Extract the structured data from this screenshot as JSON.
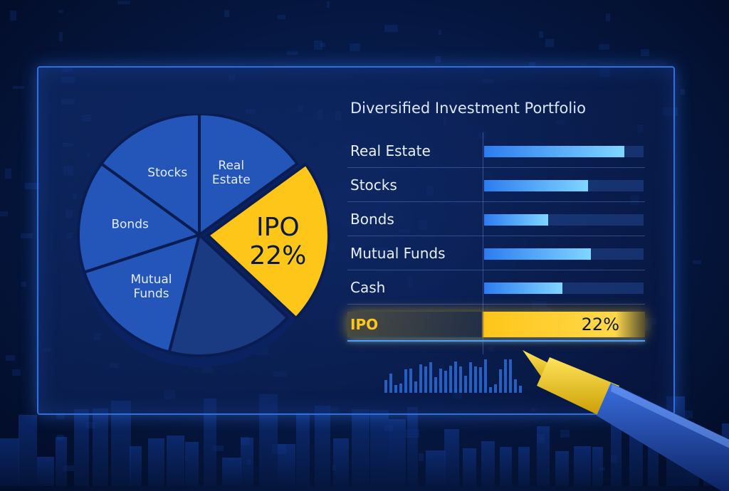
{
  "chart_data": [
    {
      "type": "pie",
      "slices": [
        {
          "label": "Real Estate",
          "value": 15
        },
        {
          "label": "IPO",
          "value": 22,
          "value_label": "22%"
        },
        {
          "label": "",
          "value": 17
        },
        {
          "label": "Mutual Funds",
          "value": 16
        },
        {
          "label": "Bonds",
          "value": 15
        },
        {
          "label": "Stocks",
          "value": 15
        }
      ],
      "highlight": "IPO",
      "colors": {
        "default": "#2455b8",
        "highlight": "#ffc61a",
        "unlabeled": "#1a3a82"
      }
    },
    {
      "type": "bar",
      "orientation": "horizontal",
      "title": "Diversified Investment Portfolio",
      "categories": [
        "Real Estate",
        "Stocks",
        "Bonds",
        "Mutual Funds",
        "Cash",
        "IPO"
      ],
      "values": [
        0.88,
        0.65,
        0.4,
        0.67,
        0.49,
        0.88
      ],
      "value_scale": "fraction of bar track",
      "highlight": {
        "category": "IPO",
        "label": "22%",
        "color": "#ffc61a"
      },
      "colors": {
        "bar": "#4aa8ff",
        "track": "#1c3c7a"
      }
    }
  ]
}
